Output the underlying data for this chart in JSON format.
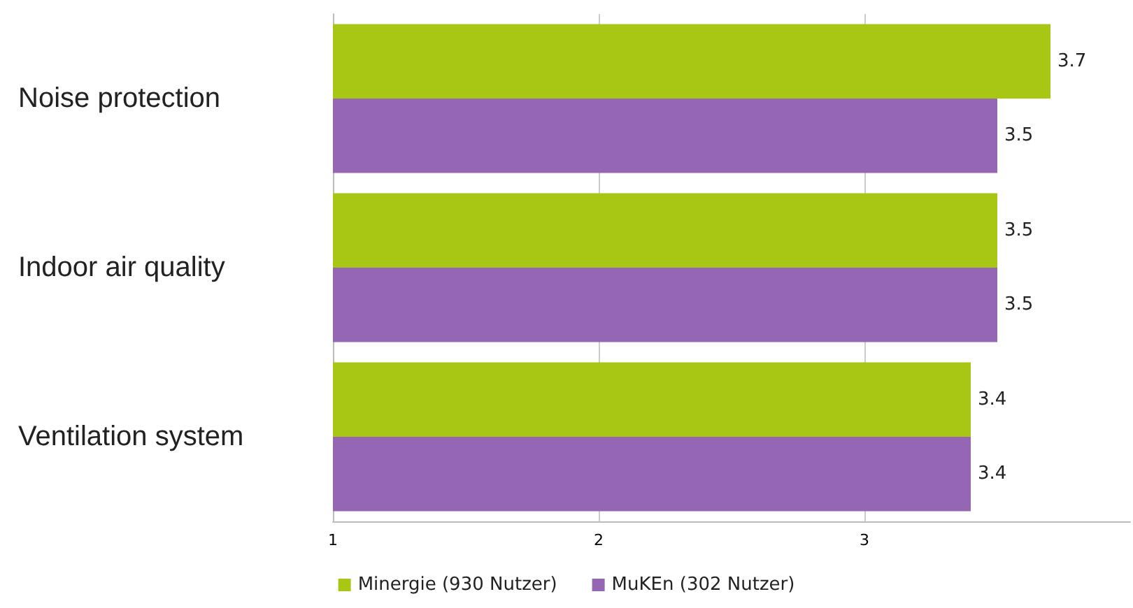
{
  "chart_data": {
    "type": "bar",
    "orientation": "horizontal",
    "categories": [
      "Noise protection",
      "Indoor air quality",
      "Ventilation system"
    ],
    "series": [
      {
        "name": "Minergie (930 Nutzer)",
        "color": "#a8c614",
        "values": [
          3.7,
          3.5,
          3.4
        ]
      },
      {
        "name": "MuKEn (302 Nutzer)",
        "color": "#9466b4",
        "values": [
          3.5,
          3.5,
          3.4
        ]
      }
    ],
    "xlim": [
      1,
      4
    ],
    "xticks": [
      1,
      2,
      3
    ],
    "grid": "x",
    "legend": "bottom",
    "data_labels": true
  }
}
